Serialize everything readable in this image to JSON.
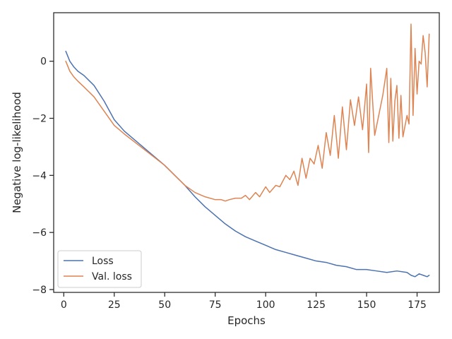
{
  "chart_data": {
    "type": "line",
    "title": "",
    "xlabel": "Epochs",
    "ylabel": "Negative log-likelihood",
    "xlim": [
      -5,
      186
    ],
    "ylim": [
      -8.1,
      1.7
    ],
    "xticks": [
      0,
      25,
      50,
      75,
      100,
      125,
      150,
      175
    ],
    "yticks": [
      -8,
      -6,
      -4,
      -2,
      0
    ],
    "grid": false,
    "legend_placement": "lower-left",
    "series": [
      {
        "name": "Loss",
        "color": "#4c72b0",
        "x": [
          1,
          3,
          5,
          7,
          10,
          15,
          20,
          25,
          30,
          40,
          50,
          55,
          60,
          65,
          70,
          75,
          80,
          85,
          90,
          95,
          100,
          105,
          110,
          115,
          120,
          125,
          130,
          135,
          140,
          145,
          150,
          155,
          160,
          165,
          170,
          172,
          174,
          176,
          178,
          180,
          181
        ],
        "y": [
          0.35,
          0.0,
          -0.2,
          -0.35,
          -0.5,
          -0.85,
          -1.4,
          -2.05,
          -2.45,
          -3.05,
          -3.65,
          -4.0,
          -4.35,
          -4.75,
          -5.1,
          -5.4,
          -5.7,
          -5.95,
          -6.15,
          -6.3,
          -6.45,
          -6.6,
          -6.7,
          -6.8,
          -6.9,
          -7.0,
          -7.05,
          -7.15,
          -7.2,
          -7.3,
          -7.3,
          -7.35,
          -7.4,
          -7.35,
          -7.4,
          -7.5,
          -7.55,
          -7.45,
          -7.5,
          -7.55,
          -7.5
        ]
      },
      {
        "name": "Val. loss",
        "color": "#dd8452",
        "x": [
          1,
          3,
          5,
          7,
          10,
          15,
          20,
          25,
          30,
          40,
          50,
          55,
          60,
          65,
          70,
          75,
          78,
          80,
          82,
          85,
          88,
          90,
          92,
          95,
          97,
          100,
          102,
          105,
          107,
          110,
          112,
          114,
          116,
          118,
          120,
          122,
          124,
          126,
          128,
          130,
          132,
          134,
          136,
          138,
          140,
          142,
          144,
          146,
          148,
          150,
          151,
          152,
          154,
          156,
          158,
          160,
          161,
          162,
          163,
          164,
          165,
          166,
          167,
          168,
          170,
          171,
          172,
          173,
          174,
          175,
          176,
          177,
          178,
          179,
          180,
          181
        ],
        "y": [
          0.0,
          -0.35,
          -0.55,
          -0.7,
          -0.9,
          -1.25,
          -1.75,
          -2.25,
          -2.55,
          -3.1,
          -3.65,
          -4.0,
          -4.35,
          -4.6,
          -4.75,
          -4.85,
          -4.85,
          -4.9,
          -4.85,
          -4.8,
          -4.8,
          -4.7,
          -4.85,
          -4.6,
          -4.75,
          -4.4,
          -4.6,
          -4.35,
          -4.4,
          -4.0,
          -4.15,
          -3.85,
          -4.35,
          -3.4,
          -4.1,
          -3.4,
          -3.6,
          -2.95,
          -3.75,
          -2.5,
          -3.3,
          -1.9,
          -3.4,
          -1.6,
          -3.1,
          -1.35,
          -2.25,
          -1.25,
          -2.4,
          -0.8,
          -3.2,
          -0.25,
          -2.6,
          -1.9,
          -1.2,
          -0.25,
          -2.85,
          -0.6,
          -2.8,
          -1.4,
          -0.85,
          -2.7,
          -1.2,
          -2.65,
          -1.9,
          -2.2,
          1.3,
          -1.9,
          0.45,
          -1.15,
          0.0,
          -0.1,
          0.9,
          0.3,
          -0.9,
          0.95
        ]
      }
    ]
  }
}
